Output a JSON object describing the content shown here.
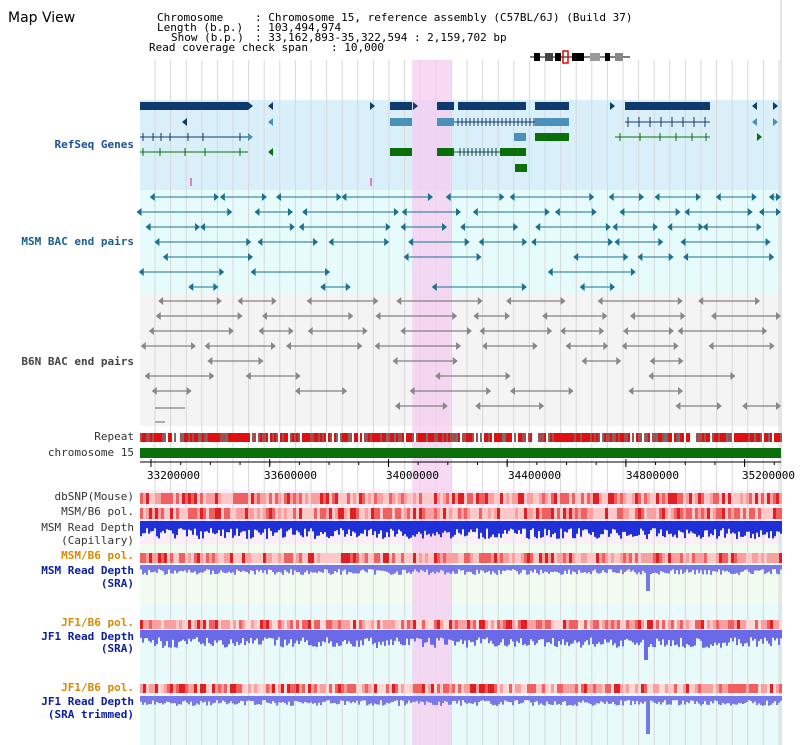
{
  "page": {
    "title": "Map View"
  },
  "header": {
    "chromosome_label": "Chromosome",
    "chromosome_value": ": Chromosome 15, reference assembly (C57BL/6J) (Build 37)",
    "length_label": "Length (b.p.)",
    "length_value": ": 103,494,974",
    "show_label": "Show (b.p.)",
    "show_value": ": 33,162,893-35,322,594 : 2,159,702 bp",
    "coverage_label": "Read coverage check span",
    "coverage_value": ": 10,000"
  },
  "tracks": {
    "refseq": "RefSeq Genes",
    "msm_bac": "MSM BAC end pairs",
    "b6n_bac": "B6N BAC end pairs",
    "repeat": "Repeat",
    "chromosome": "chromosome 15",
    "dbsnp": "dbSNP(Mouse)",
    "msm_b6_pol_1": "MSM/B6 pol.",
    "msm_read_depth_cap_1": "MSM Read Depth",
    "msm_read_depth_cap_2": "(Capillary)",
    "msm_b6_pol_2": "MSM/B6 pol.",
    "msm_read_depth_sra_1": "MSM Read Depth",
    "msm_read_depth_sra_2": "(SRA)",
    "jf1_b6_pol_1": "JF1/B6 pol.",
    "jf1_read_depth_sra_1": "JF1 Read Depth",
    "jf1_read_depth_sra_2": "(SRA)",
    "jf1_b6_pol_2": "JF1/B6 pol.",
    "jf1_read_depth_trim_1": "JF1 Read Depth",
    "jf1_read_depth_trim_2": "(SRA trimmed)"
  },
  "axis": {
    "ticks": [
      "33200000",
      "33600000",
      "34000000",
      "34400000",
      "34800000",
      "35200000"
    ],
    "range": [
      33162893,
      35322594
    ]
  },
  "highlight": {
    "start": 34080000,
    "end": 34210000
  },
  "colors": {
    "refseq_bg": "#d9f0fa",
    "bac_bg": "#e6fbfb",
    "depth_bg": "#eefbf5",
    "highlight": "#f5ccf0",
    "gene_dark": "#0f3a6e",
    "gene_mid": "#4a90b8",
    "gene_green": "#0a6e0a",
    "chromosome_bar": "#0a6e0a"
  }
}
